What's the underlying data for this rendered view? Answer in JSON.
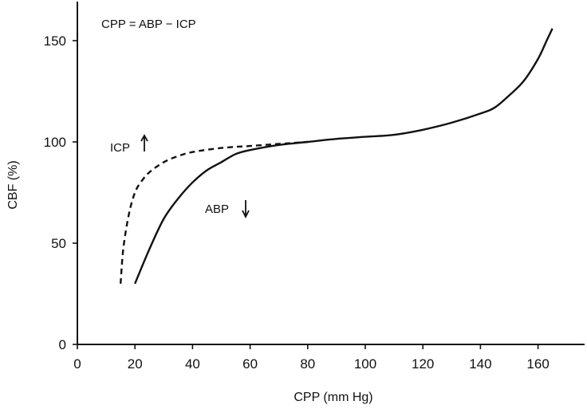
{
  "chart_data": {
    "type": "line",
    "title": "",
    "xlabel": "CPP (mm Hg)",
    "ylabel": "CBF (%)",
    "xlim": [
      0,
      175
    ],
    "ylim": [
      0,
      170
    ],
    "x_ticks": [
      0,
      20,
      40,
      60,
      80,
      100,
      120,
      140,
      160
    ],
    "y_ticks": [
      0,
      50,
      100,
      150
    ],
    "grid": false,
    "annotations": {
      "formula": "CPP = ABP − ICP",
      "icp_label": "ICP",
      "abp_label": "ABP"
    },
    "series": [
      {
        "name": "ABP",
        "style": "solid",
        "x": [
          20,
          25,
          30,
          35,
          40,
          45,
          50,
          55,
          60,
          70,
          80,
          90,
          100,
          110,
          120,
          130,
          140,
          145,
          150,
          155,
          160,
          163,
          165
        ],
        "y": [
          30,
          47,
          62,
          72,
          80,
          86,
          90,
          94,
          96,
          98.5,
          100,
          101.5,
          102.5,
          103.5,
          106,
          109.5,
          114,
          117,
          123,
          130,
          141,
          150,
          156
        ]
      },
      {
        "name": "ICP",
        "style": "dashed",
        "x": [
          15,
          16,
          18,
          20,
          22,
          25,
          30,
          35,
          40,
          50,
          60,
          70,
          80
        ],
        "y": [
          30,
          48,
          65,
          75,
          80,
          85,
          90,
          93,
          95,
          97,
          98,
          99,
          100
        ]
      }
    ],
    "colors": {
      "line": "#111111",
      "axis": "#111111"
    }
  }
}
